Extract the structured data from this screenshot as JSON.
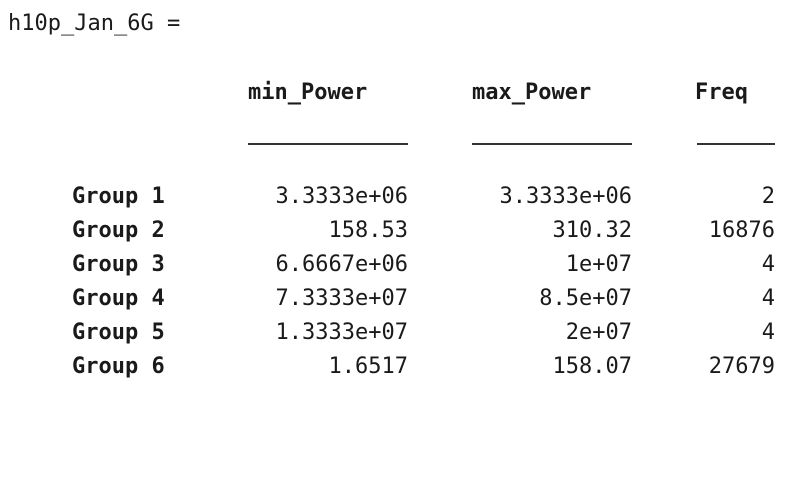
{
  "output": {
    "variable_line": "h10p_Jan_6G =",
    "columns": {
      "min": "min_Power",
      "max": "max_Power",
      "freq": "Freq"
    },
    "rows": [
      {
        "label": "Group 1",
        "min": "3.3333e+06",
        "max": "3.3333e+06",
        "freq": "2"
      },
      {
        "label": "Group 2",
        "min": "158.53",
        "max": "310.32",
        "freq": "16876"
      },
      {
        "label": "Group 3",
        "min": "6.6667e+06",
        "max": "1e+07",
        "freq": "4"
      },
      {
        "label": "Group 4",
        "min": "7.3333e+07",
        "max": "8.5e+07",
        "freq": "4"
      },
      {
        "label": "Group 5",
        "min": "1.3333e+07",
        "max": "2e+07",
        "freq": "4"
      },
      {
        "label": "Group 6",
        "min": "1.6517",
        "max": "158.07",
        "freq": "27679"
      }
    ]
  }
}
